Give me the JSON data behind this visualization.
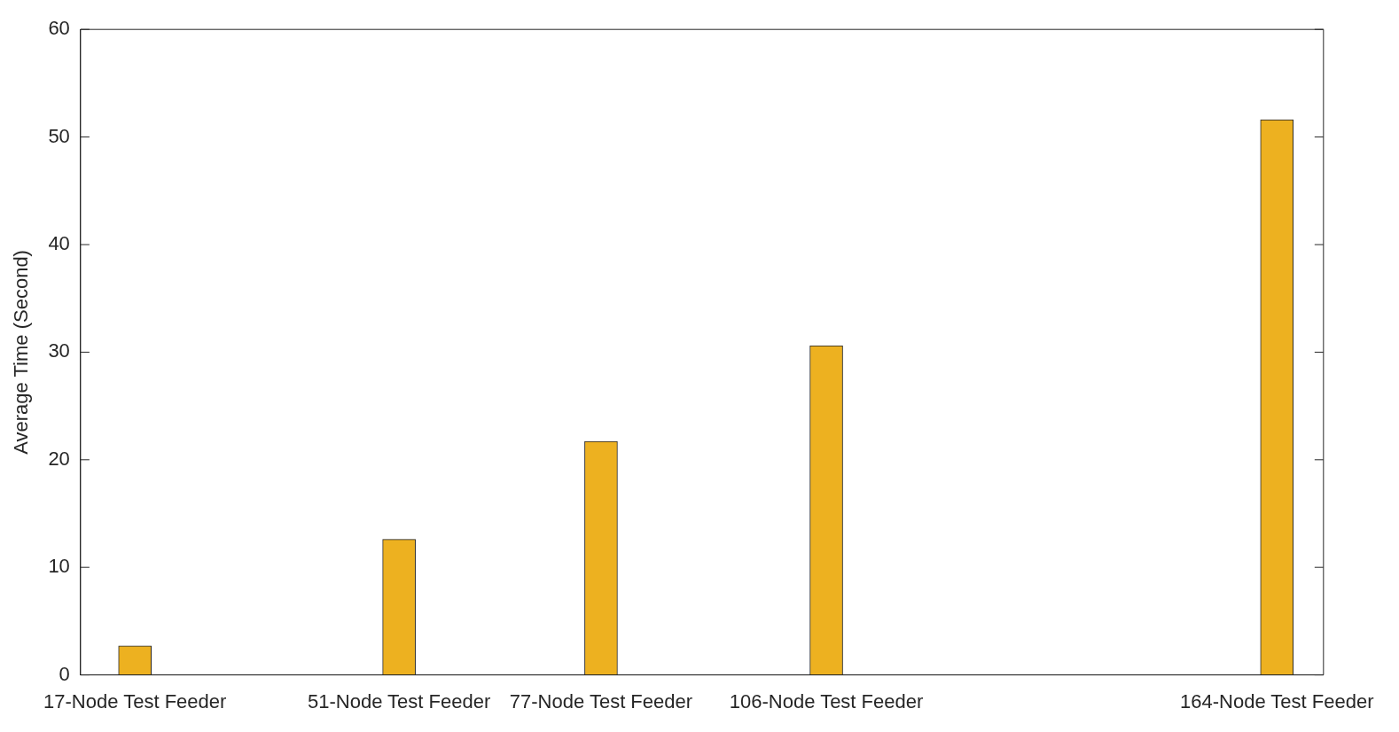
{
  "chart_data": {
    "type": "bar",
    "ylabel": "Average Time (Second)",
    "x": [
      17,
      51,
      77,
      106,
      164
    ],
    "values": [
      2.7,
      12.6,
      21.7,
      30.6,
      51.6
    ],
    "color": "#edb120",
    "xlim": [
      10,
      170
    ],
    "xticks": [
      {
        "value": 17,
        "label": "17-Node Test Feeder"
      },
      {
        "value": 51,
        "label": "51-Node Test Feeder"
      },
      {
        "value": 77,
        "label": "77-Node Test Feeder"
      },
      {
        "value": 106,
        "label": "106-Node Test Feeder"
      },
      {
        "value": 164,
        "label": "164-Node Test Feeder"
      }
    ],
    "ylim": [
      0,
      60
    ],
    "yticks": [
      0,
      10,
      20,
      30,
      40,
      50,
      60
    ],
    "grid": false,
    "legend": false
  }
}
